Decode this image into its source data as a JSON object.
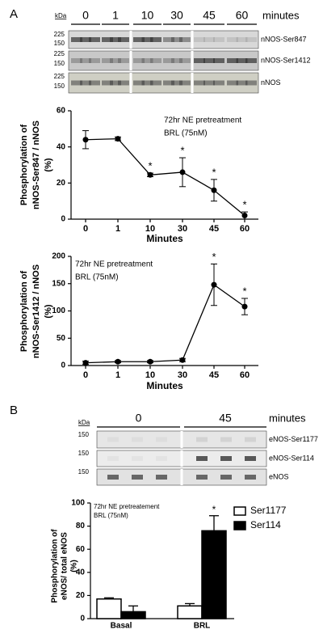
{
  "panel_labels": [
    "A",
    "B"
  ],
  "blot_a": {
    "kda_label": "kDa",
    "markers": [
      "225",
      "150",
      "225",
      "150",
      "225",
      "150"
    ],
    "time_labels": [
      "0",
      "1",
      "10",
      "30",
      "45",
      "60"
    ],
    "time_unit": "minutes",
    "bands": [
      "nNOS-Ser847",
      "nNOS-Ser1412",
      "nNOS"
    ]
  },
  "blot_b": {
    "kda_label": "kDa",
    "markers": [
      "150",
      "150",
      "150"
    ],
    "time_labels": [
      "0",
      "45"
    ],
    "time_unit": "minutes",
    "bands": [
      "eNOS-Ser1177",
      "eNOS-Ser114",
      "eNOS"
    ]
  },
  "chart_data": [
    {
      "type": "line",
      "annotation": [
        "72hr NE pretreatment",
        "BRL (75nM)"
      ],
      "ylabel": [
        "Phosphorylation of",
        "nNOS-Ser847 / nNOS",
        "(%)"
      ],
      "xlabel": "Minutes",
      "categories": [
        "0",
        "1",
        "10",
        "30",
        "45",
        "60"
      ],
      "values": [
        44,
        44.5,
        24.5,
        26,
        16,
        2
      ],
      "errors": [
        5,
        1,
        1,
        8,
        6,
        2
      ],
      "significance": [
        null,
        null,
        "*",
        "*",
        "*",
        "*"
      ],
      "color": "#000000",
      "ylim": [
        0,
        60
      ],
      "yticks": [
        0,
        20,
        40,
        60
      ]
    },
    {
      "type": "line",
      "annotation": [
        "72hr NE pretreatment",
        "BRL (75nM)"
      ],
      "ylabel": [
        "Phosphorylation of",
        "nNOS-Ser1412 / nNOS",
        "(%)"
      ],
      "xlabel": "Minutes",
      "categories": [
        "0",
        "1",
        "10",
        "30",
        "45",
        "60"
      ],
      "values": [
        5,
        7,
        7,
        10,
        148,
        108
      ],
      "errors": [
        3,
        2,
        2,
        3,
        38,
        15
      ],
      "significance": [
        null,
        null,
        null,
        null,
        "*",
        "*"
      ],
      "color": "#000000",
      "ylim": [
        0,
        200
      ],
      "yticks": [
        0,
        50,
        100,
        150,
        200
      ]
    },
    {
      "type": "bar",
      "annotation": [
        "72hr NE pretreatement",
        "BRL (75nM)"
      ],
      "ylabel": [
        "Phosphorylation of",
        "eNOS/ total eNOS",
        "(%)"
      ],
      "categories": [
        "Basal",
        "BRL"
      ],
      "series": [
        {
          "name": "Ser1177",
          "color": "#ffffff",
          "values": [
            17,
            11
          ],
          "errors": [
            1,
            2
          ],
          "significance": [
            null,
            null
          ]
        },
        {
          "name": "Ser114",
          "color": "#000000",
          "values": [
            6,
            76
          ],
          "errors": [
            5,
            13
          ],
          "significance": [
            null,
            "*"
          ]
        }
      ],
      "ylim": [
        0,
        100
      ],
      "yticks": [
        0,
        20,
        40,
        60,
        80,
        100
      ]
    }
  ]
}
